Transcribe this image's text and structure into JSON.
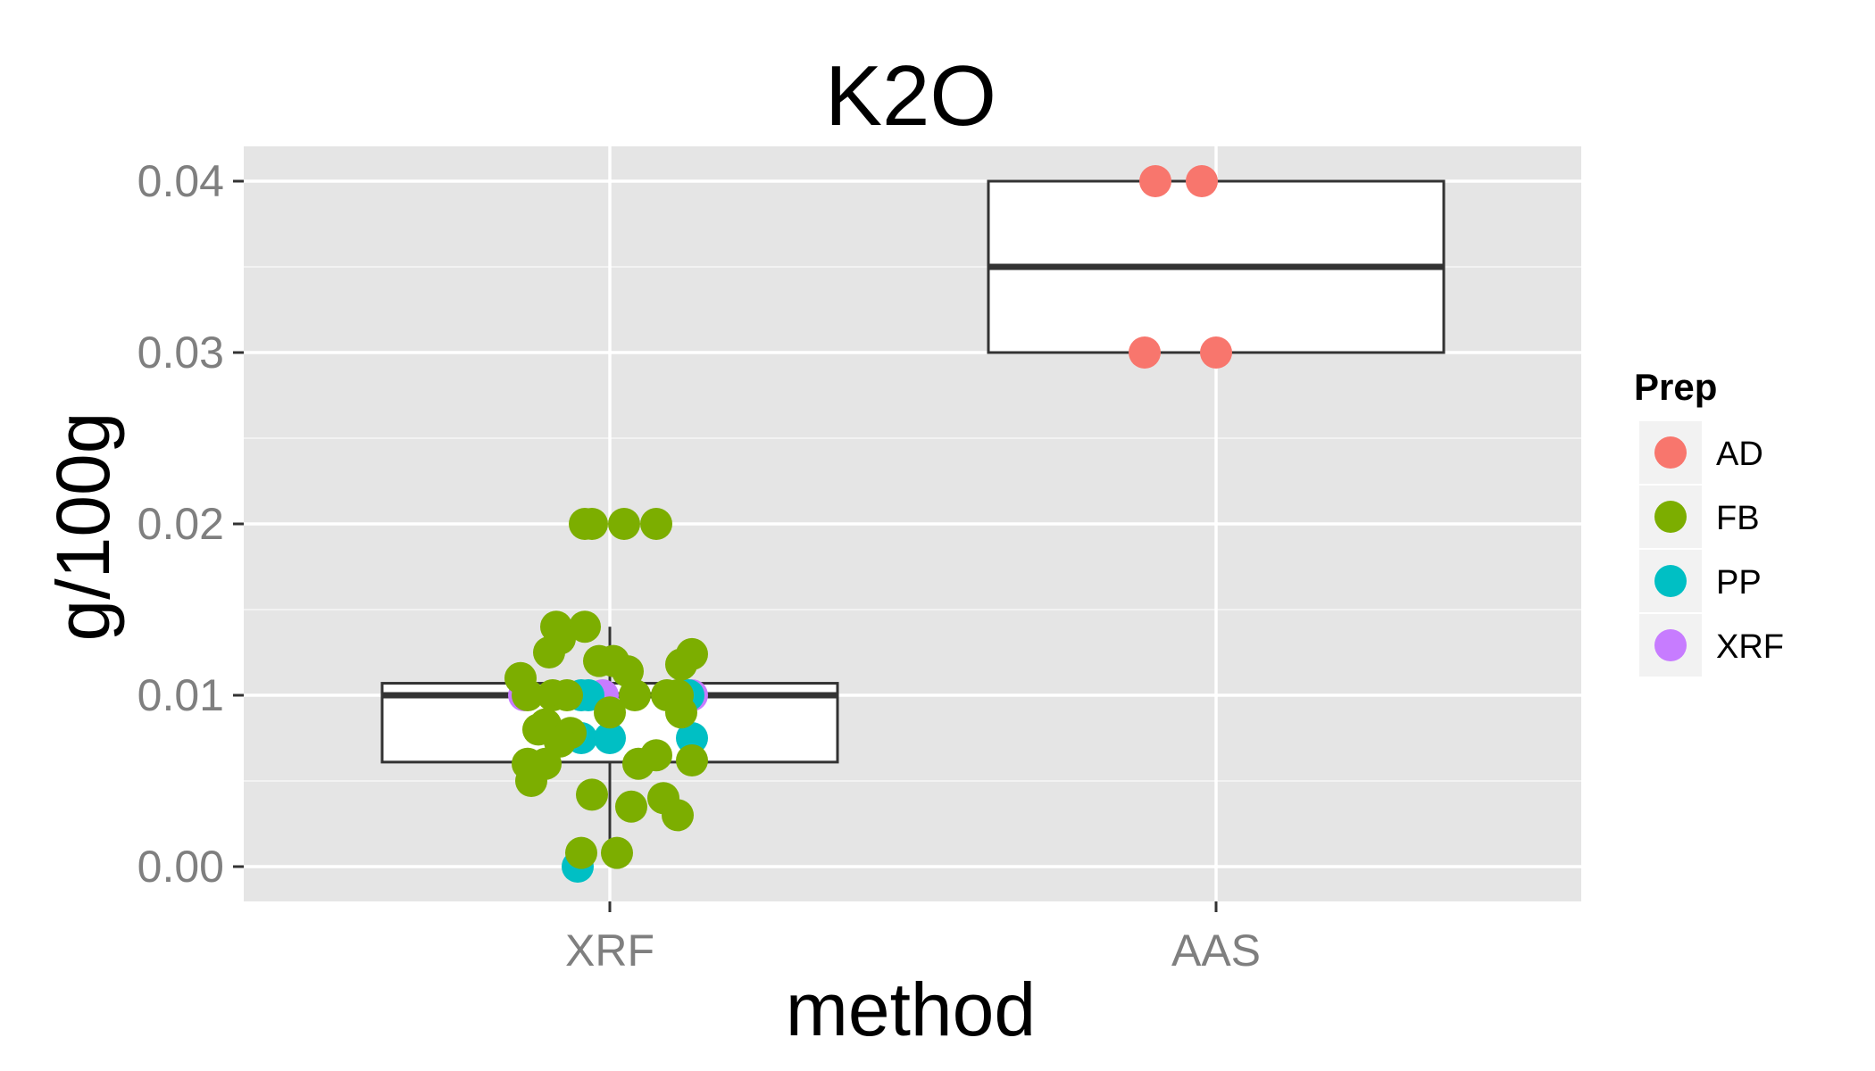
{
  "chart_data": {
    "type": "boxplot",
    "title": "K2O",
    "xlabel": "method",
    "ylabel": "g/100g",
    "categories": [
      "XRF",
      "AAS"
    ],
    "y_ticks": [
      "0.00",
      "0.01",
      "0.02",
      "0.03",
      "0.04"
    ],
    "ylim": [
      -0.002,
      0.042
    ],
    "grid": true,
    "legend": {
      "title": "Prep",
      "position": "right",
      "entries": [
        {
          "label": "AD",
          "color": "#F8766D"
        },
        {
          "label": "FB",
          "color": "#7CAE00"
        },
        {
          "label": "PP",
          "color": "#00BFC4"
        },
        {
          "label": "XRF",
          "color": "#C77CFF"
        }
      ]
    },
    "boxes": [
      {
        "category": "XRF",
        "lower_whisker": 0.0008,
        "q1": 0.0061,
        "median": 0.01,
        "q3": 0.0107,
        "upper_whisker": 0.014
      },
      {
        "category": "AAS",
        "lower_whisker": 0.03,
        "q1": 0.03,
        "median": 0.035,
        "q3": 0.04,
        "upper_whisker": 0.04
      }
    ],
    "points": [
      {
        "category": "AAS",
        "prep": "AD",
        "jitter": -0.17,
        "value": 0.04
      },
      {
        "category": "AAS",
        "prep": "AD",
        "jitter": -0.04,
        "value": 0.04
      },
      {
        "category": "AAS",
        "prep": "AD",
        "jitter": -0.2,
        "value": 0.03
      },
      {
        "category": "AAS",
        "prep": "AD",
        "jitter": 0.0,
        "value": 0.03
      },
      {
        "category": "XRF",
        "prep": "XRF",
        "jitter": -0.24,
        "value": 0.01
      },
      {
        "category": "XRF",
        "prep": "XRF",
        "jitter": -0.02,
        "value": 0.01
      },
      {
        "category": "XRF",
        "prep": "XRF",
        "jitter": 0.23,
        "value": 0.01
      },
      {
        "category": "XRF",
        "prep": "PP",
        "jitter": -0.08,
        "value": 0.01
      },
      {
        "category": "XRF",
        "prep": "PP",
        "jitter": -0.06,
        "value": 0.01
      },
      {
        "category": "XRF",
        "prep": "PP",
        "jitter": -0.13,
        "value": 0.0075
      },
      {
        "category": "XRF",
        "prep": "PP",
        "jitter": -0.08,
        "value": 0.0075
      },
      {
        "category": "XRF",
        "prep": "PP",
        "jitter": 0.0,
        "value": 0.0075
      },
      {
        "category": "XRF",
        "prep": "PP",
        "jitter": 0.22,
        "value": 0.01
      },
      {
        "category": "XRF",
        "prep": "PP",
        "jitter": 0.23,
        "value": 0.0075
      },
      {
        "category": "XRF",
        "prep": "PP",
        "jitter": -0.09,
        "value": 0.0
      },
      {
        "category": "XRF",
        "prep": "FB",
        "jitter": -0.07,
        "value": 0.02
      },
      {
        "category": "XRF",
        "prep": "FB",
        "jitter": -0.05,
        "value": 0.02
      },
      {
        "category": "XRF",
        "prep": "FB",
        "jitter": 0.04,
        "value": 0.02
      },
      {
        "category": "XRF",
        "prep": "FB",
        "jitter": 0.13,
        "value": 0.02
      },
      {
        "category": "XRF",
        "prep": "FB",
        "jitter": -0.15,
        "value": 0.014
      },
      {
        "category": "XRF",
        "prep": "FB",
        "jitter": -0.07,
        "value": 0.014
      },
      {
        "category": "XRF",
        "prep": "FB",
        "jitter": -0.14,
        "value": 0.0133
      },
      {
        "category": "XRF",
        "prep": "FB",
        "jitter": -0.17,
        "value": 0.0125
      },
      {
        "category": "XRF",
        "prep": "FB",
        "jitter": -0.03,
        "value": 0.012
      },
      {
        "category": "XRF",
        "prep": "FB",
        "jitter": 0.01,
        "value": 0.012
      },
      {
        "category": "XRF",
        "prep": "FB",
        "jitter": 0.05,
        "value": 0.0114
      },
      {
        "category": "XRF",
        "prep": "FB",
        "jitter": 0.23,
        "value": 0.0124
      },
      {
        "category": "XRF",
        "prep": "FB",
        "jitter": 0.2,
        "value": 0.0118
      },
      {
        "category": "XRF",
        "prep": "FB",
        "jitter": -0.25,
        "value": 0.011
      },
      {
        "category": "XRF",
        "prep": "FB",
        "jitter": -0.23,
        "value": 0.01
      },
      {
        "category": "XRF",
        "prep": "FB",
        "jitter": -0.16,
        "value": 0.01
      },
      {
        "category": "XRF",
        "prep": "FB",
        "jitter": -0.12,
        "value": 0.01
      },
      {
        "category": "XRF",
        "prep": "FB",
        "jitter": 0.07,
        "value": 0.01
      },
      {
        "category": "XRF",
        "prep": "FB",
        "jitter": 0.16,
        "value": 0.01
      },
      {
        "category": "XRF",
        "prep": "FB",
        "jitter": 0.19,
        "value": 0.01
      },
      {
        "category": "XRF",
        "prep": "FB",
        "jitter": 0.0,
        "value": 0.009
      },
      {
        "category": "XRF",
        "prep": "FB",
        "jitter": 0.2,
        "value": 0.009
      },
      {
        "category": "XRF",
        "prep": "FB",
        "jitter": -0.2,
        "value": 0.008
      },
      {
        "category": "XRF",
        "prep": "FB",
        "jitter": -0.18,
        "value": 0.0083
      },
      {
        "category": "XRF",
        "prep": "FB",
        "jitter": -0.11,
        "value": 0.0078
      },
      {
        "category": "XRF",
        "prep": "FB",
        "jitter": -0.14,
        "value": 0.0073
      },
      {
        "category": "XRF",
        "prep": "FB",
        "jitter": 0.08,
        "value": 0.006
      },
      {
        "category": "XRF",
        "prep": "FB",
        "jitter": 0.13,
        "value": 0.0065
      },
      {
        "category": "XRF",
        "prep": "FB",
        "jitter": 0.23,
        "value": 0.0062
      },
      {
        "category": "XRF",
        "prep": "FB",
        "jitter": -0.23,
        "value": 0.006
      },
      {
        "category": "XRF",
        "prep": "FB",
        "jitter": -0.21,
        "value": 0.0058
      },
      {
        "category": "XRF",
        "prep": "FB",
        "jitter": -0.18,
        "value": 0.006
      },
      {
        "category": "XRF",
        "prep": "FB",
        "jitter": -0.22,
        "value": 0.005
      },
      {
        "category": "XRF",
        "prep": "FB",
        "jitter": -0.05,
        "value": 0.0042
      },
      {
        "category": "XRF",
        "prep": "FB",
        "jitter": 0.06,
        "value": 0.0035
      },
      {
        "category": "XRF",
        "prep": "FB",
        "jitter": 0.15,
        "value": 0.004
      },
      {
        "category": "XRF",
        "prep": "FB",
        "jitter": 0.19,
        "value": 0.003
      },
      {
        "category": "XRF",
        "prep": "FB",
        "jitter": -0.08,
        "value": 0.0008
      },
      {
        "category": "XRF",
        "prep": "FB",
        "jitter": 0.02,
        "value": 0.0008
      }
    ]
  }
}
